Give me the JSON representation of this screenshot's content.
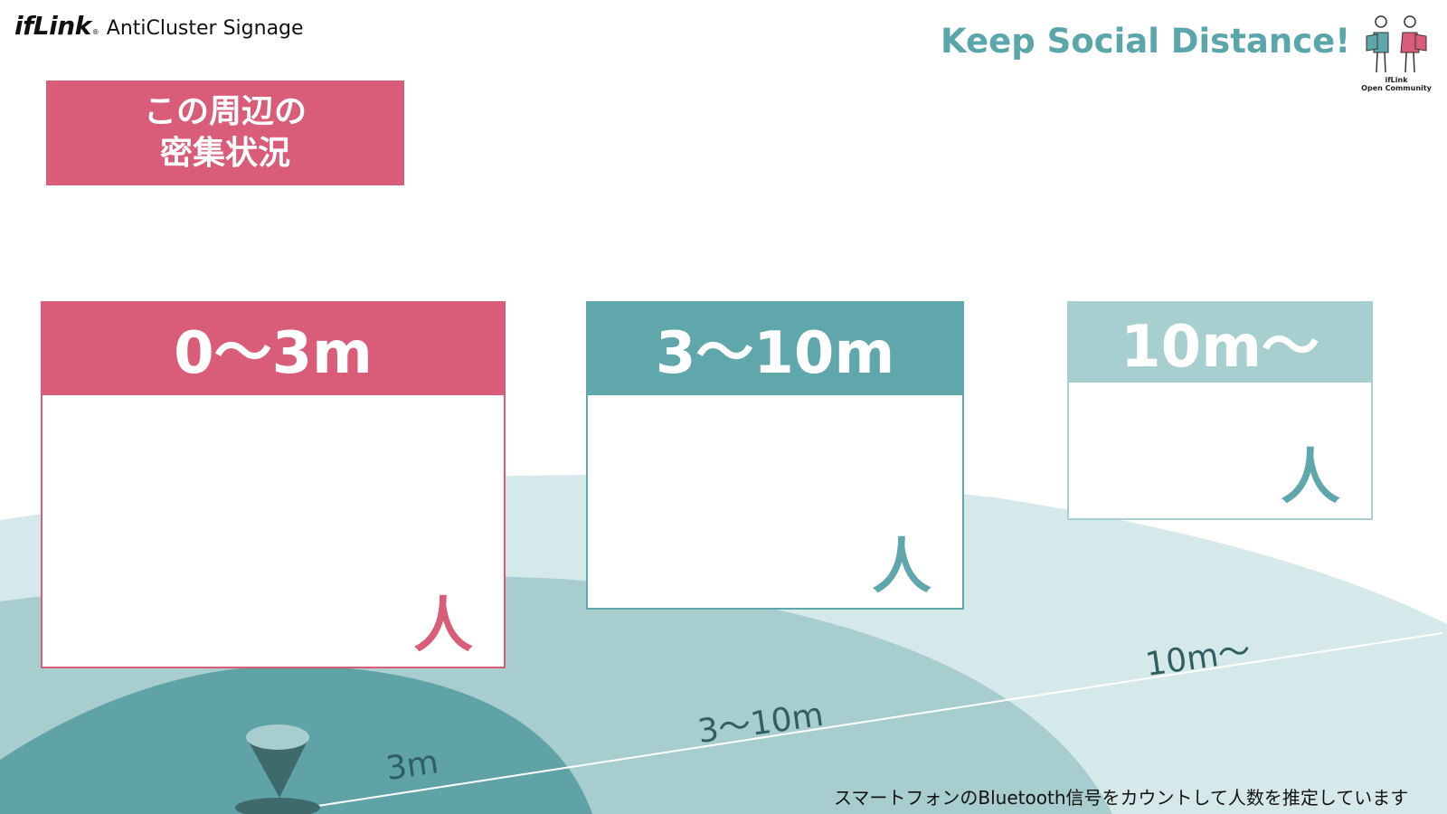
{
  "brand": {
    "logo": "ifLink",
    "registered_mark": "®",
    "product_name": "AntiCluster Signage"
  },
  "slogan": "Keep Social Distance!",
  "community_logo": {
    "icon": "two-people-holding-sign-icon",
    "line1": "ifLink",
    "line2": "Open Community"
  },
  "heading": {
    "line1": "この周辺の",
    "line2": "密集状況"
  },
  "zones": [
    {
      "range_label": "0〜3m",
      "count": "",
      "unit": "人",
      "color": "#d95c78"
    },
    {
      "range_label": "3〜10m",
      "count": "",
      "unit": "人",
      "color": "#5fa7ab"
    },
    {
      "range_label": "10m〜",
      "count": "",
      "unit": "人",
      "color": "#a7cfd0"
    }
  ],
  "distance_labels": {
    "near": "3m",
    "mid": "3〜10m",
    "far": "10m〜"
  },
  "footnote": "スマートフォンのBluetooth信号をカウントして人数を推定しています",
  "colors": {
    "accent_pink": "#d95c78",
    "accent_teal": "#5fa7ab",
    "light_teal": "#a7cfd0",
    "pale_teal": "#d6e9ea",
    "dark_teal": "#3c6b6c"
  }
}
